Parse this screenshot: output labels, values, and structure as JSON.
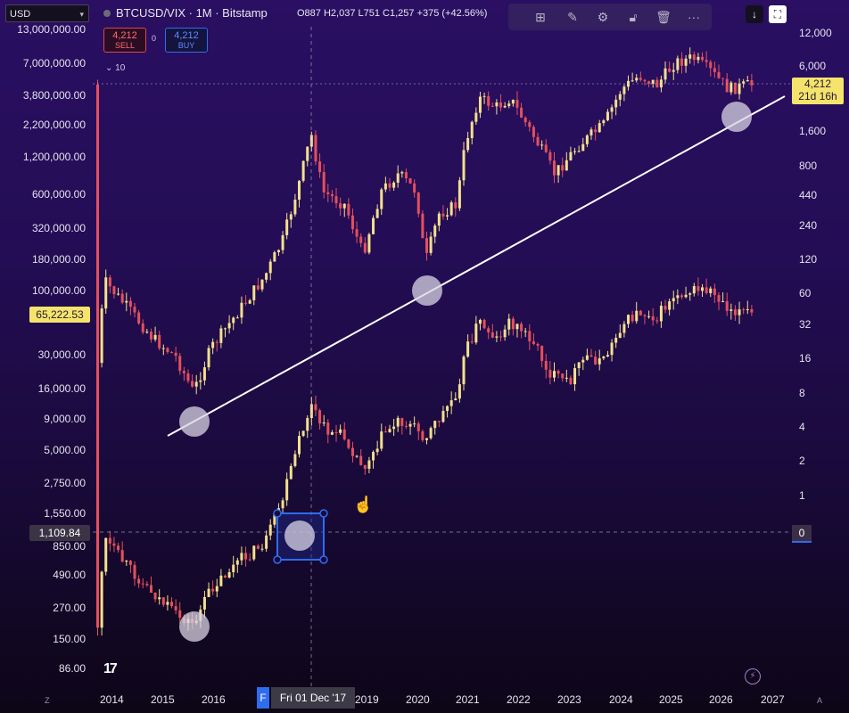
{
  "header": {
    "currency": "USD",
    "symbol": "BTCUSD/VIX · 1M · Bitstamp",
    "ohlc": "O887  H2,037  L751  C1,257",
    "change": "+375 (+42.56%)"
  },
  "trade": {
    "sell_price": "4,212",
    "sell_label": "SELL",
    "spread": "0",
    "buy_price": "4,212",
    "buy_label": "BUY"
  },
  "indicator_toggle": "⌄ 10",
  "toolbar": {
    "icons": [
      "grid-add-icon",
      "brush-icon",
      "settings-icon",
      "lock-icon",
      "trash-icon",
      "more-icon"
    ]
  },
  "top_right": {
    "download_icon": "download-icon",
    "fullscreen_icon": "fullscreen-icon"
  },
  "left_axis": {
    "labels": [
      "13,000,000.00",
      "7,000,000.00",
      "3,800,000.00",
      "2,200,000.00",
      "1,200,000.00",
      "600,000.00",
      "320,000.00",
      "180,000.00",
      "100,000.00",
      "30,000.00",
      "16,000.00",
      "9,000.00",
      "5,000.00",
      "2,750.00",
      "1,550.00",
      "850.00",
      "490.00",
      "270.00",
      "150.00",
      "86.00"
    ],
    "tag_price": "65,222.53",
    "tag_crosshair": "1,109.84"
  },
  "right_axis": {
    "labels": [
      "12,000",
      "6,000",
      "1,600",
      "800",
      "440",
      "240",
      "120",
      "60",
      "32",
      "16",
      "8",
      "4",
      "2",
      "1"
    ],
    "current_price": "4,212",
    "countdown": "21d 16h",
    "zero_label": "0"
  },
  "x_axis": {
    "years": [
      "2014",
      "2015",
      "2016",
      "2019",
      "2020",
      "2021",
      "2022",
      "2023",
      "2024",
      "2025",
      "2026",
      "2027"
    ],
    "crosshair_mark": "F",
    "crosshair_date": "Fri 01 Dec '17"
  },
  "footer": {
    "logo": "17",
    "left_corner": "Z",
    "right_corner": "A"
  },
  "colors": {
    "up_candle": "#f3e08c",
    "down_candle": "#e4505d",
    "trend_line": "#ffffff",
    "accent_blue": "#2e6cf0",
    "price_tag_yellow": "#f5e46c"
  },
  "chart_data": {
    "type": "candlestick",
    "series": [
      {
        "name": "BTCUSD/VIX",
        "timeframe": "1M",
        "exchange": "Bitstamp",
        "last": 4212
      }
    ],
    "x_range": [
      "2013",
      "2027"
    ],
    "left_scale": "log",
    "right_scale": "log",
    "annotations": [
      "trend-line",
      "circle-markers",
      "selected-rectangle",
      "crosshair"
    ]
  }
}
